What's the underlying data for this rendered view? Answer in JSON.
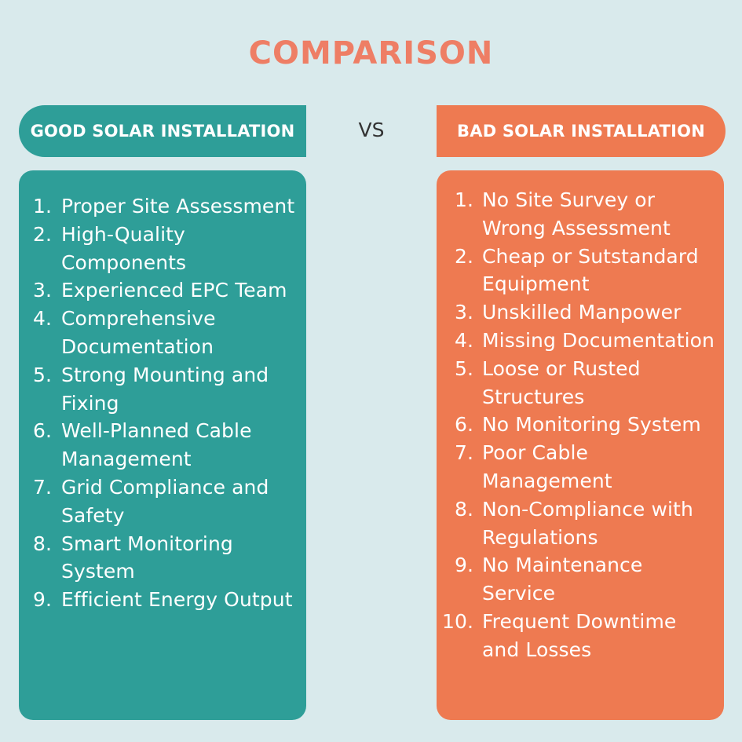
{
  "title": "COMPARISON",
  "vs_label": "VS",
  "good": {
    "header": "GOOD SOLAR INSTALLATION",
    "color": "#2e9e98",
    "items": [
      {
        "num": "1.",
        "text": "Proper Site Assessment"
      },
      {
        "num": "2.",
        "text": "High-Quality Components"
      },
      {
        "num": "3.",
        "text": "Experienced EPC Team"
      },
      {
        "num": "4.",
        "text": "Comprehensive Documentation"
      },
      {
        "num": "5.",
        "text": "Strong Mounting and Fixing"
      },
      {
        "num": "6.",
        "text": "Well-Planned Cable Management"
      },
      {
        "num": "7.",
        "text": "Grid Compliance and Safety"
      },
      {
        "num": "8.",
        "text": "Smart Monitoring System"
      },
      {
        "num": "9.",
        "text": "Efficient Energy Output"
      }
    ]
  },
  "bad": {
    "header": "BAD SOLAR INSTALLATION",
    "color": "#ee7a51",
    "items": [
      {
        "num": "1.",
        "text": "No Site Survey or Wrong Assessment"
      },
      {
        "num": "2.",
        "text": "Cheap or Sutstandard Equipment"
      },
      {
        "num": "3.",
        "text": "Unskilled Manpower"
      },
      {
        "num": "4.",
        "text": "Missing Documentation"
      },
      {
        "num": "5.",
        "text": "Loose or Rusted Structures"
      },
      {
        "num": "6.",
        "text": "No Monitoring System"
      },
      {
        "num": "7.",
        "text": "Poor Cable Management"
      },
      {
        "num": "8.",
        "text": "Non-Compliance with Regulations"
      },
      {
        "num": "9.",
        "text": "No Maintenance Service"
      },
      {
        "num": "10.",
        "text": "Frequent Downtime and Losses"
      }
    ]
  }
}
